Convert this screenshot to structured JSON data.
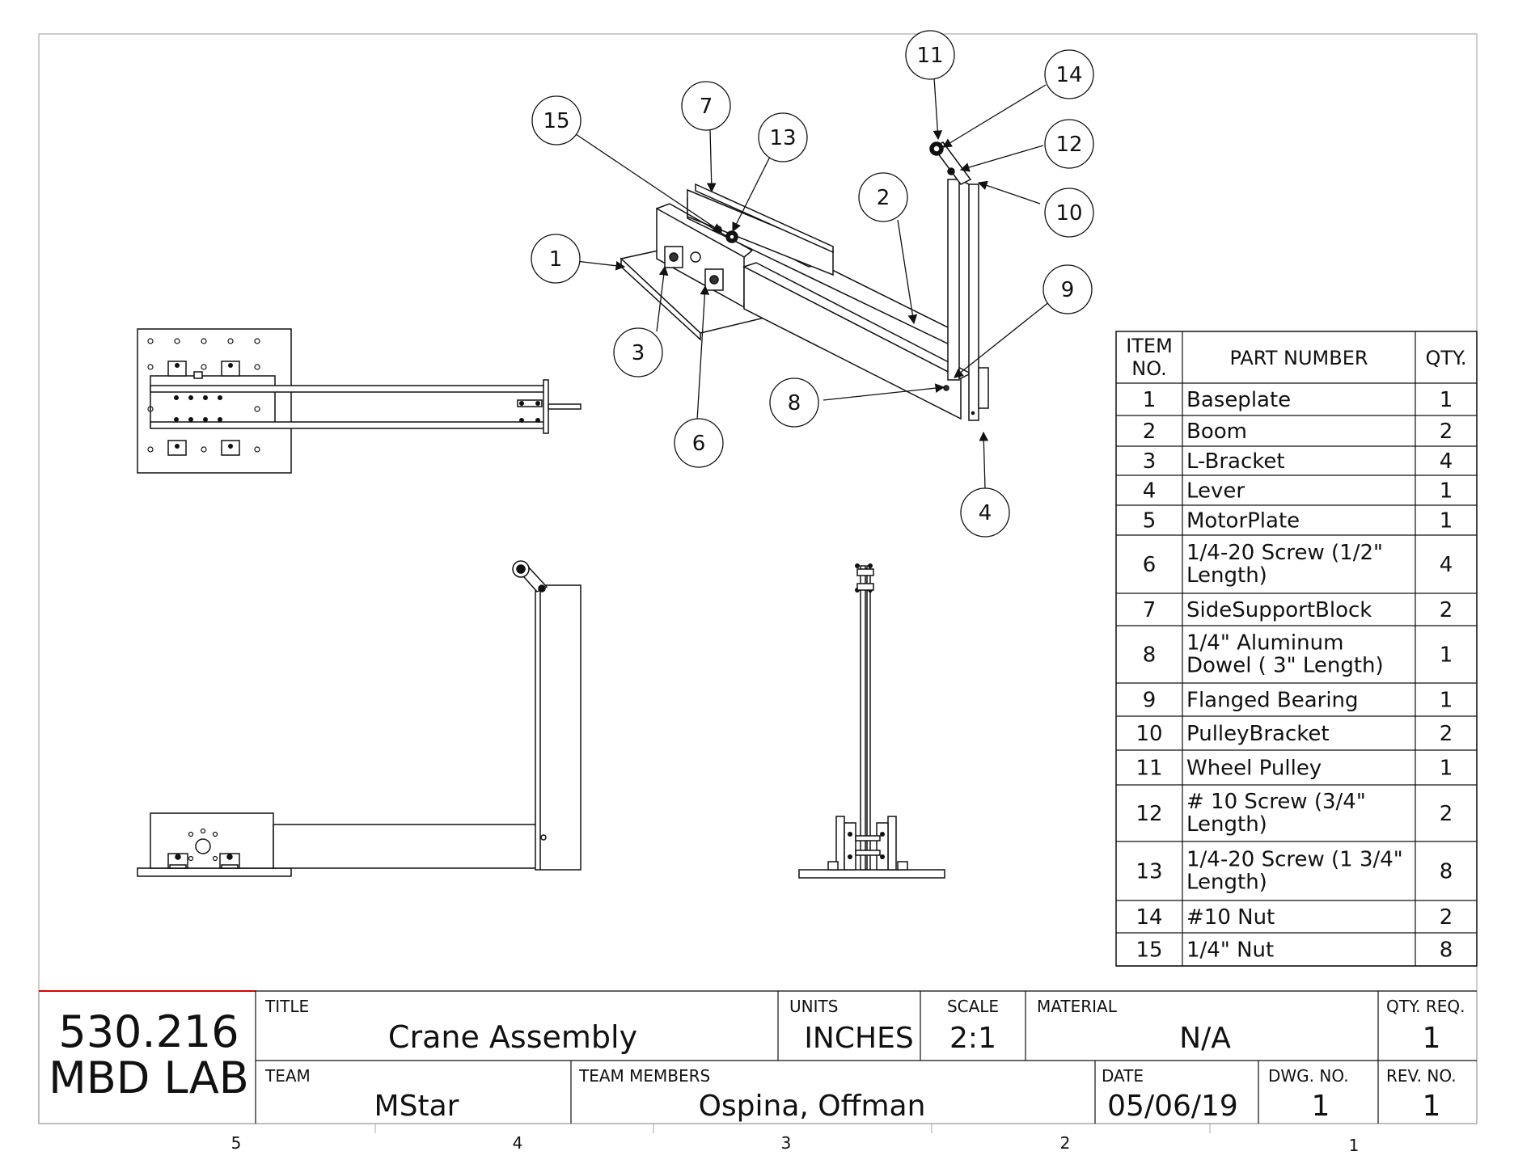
{
  "bom": {
    "headers": {
      "item_no": [
        "ITEM",
        "NO."
      ],
      "part_number": "PART NUMBER",
      "qty": "QTY."
    },
    "rows": [
      {
        "item": "1",
        "part": [
          "Baseplate"
        ],
        "qty": "1"
      },
      {
        "item": "2",
        "part": [
          "Boom"
        ],
        "qty": "2"
      },
      {
        "item": "3",
        "part": [
          "L-Bracket"
        ],
        "qty": "4"
      },
      {
        "item": "4",
        "part": [
          "Lever"
        ],
        "qty": "1"
      },
      {
        "item": "5",
        "part": [
          "MotorPlate"
        ],
        "qty": "1"
      },
      {
        "item": "6",
        "part": [
          "1/4-20 Screw (1/2\"",
          "Length)"
        ],
        "qty": "4"
      },
      {
        "item": "7",
        "part": [
          "SideSupportBlock"
        ],
        "qty": "2"
      },
      {
        "item": "8",
        "part": [
          "1/4\" Aluminum",
          "Dowel ( 3\" Length)"
        ],
        "qty": "1"
      },
      {
        "item": "9",
        "part": [
          "Flanged Bearing"
        ],
        "qty": "1"
      },
      {
        "item": "10",
        "part": [
          "PulleyBracket"
        ],
        "qty": "2"
      },
      {
        "item": "11",
        "part": [
          "Wheel Pulley"
        ],
        "qty": "1"
      },
      {
        "item": "12",
        "part": [
          "# 10 Screw (3/4\"",
          "Length)"
        ],
        "qty": "2"
      },
      {
        "item": "13",
        "part": [
          "1/4-20 Screw (1 3/4\"",
          "Length)"
        ],
        "qty": "8"
      },
      {
        "item": "14",
        "part": [
          "#10 Nut"
        ],
        "qty": "2"
      },
      {
        "item": "15",
        "part": [
          "1/4\" Nut"
        ],
        "qty": "8"
      }
    ]
  },
  "balloons": [
    "1",
    "2",
    "3",
    "4",
    "6",
    "7",
    "8",
    "9",
    "10",
    "11",
    "12",
    "13",
    "14",
    "15"
  ],
  "title_block": {
    "course_line1": "530.216",
    "course_line2": "MBD LAB",
    "title_label": "TITLE",
    "title_value": "Crane Assembly",
    "units_label": "UNITS",
    "units_value": "INCHES",
    "scale_label": "SCALE",
    "scale_value": "2:1",
    "material_label": "MATERIAL",
    "material_value": "N/A",
    "qty_req_label": "QTY. REQ.",
    "qty_req_value": "1",
    "team_label": "TEAM",
    "team_value": "MStar",
    "members_label": "TEAM MEMBERS",
    "members_value": "Ospina, Offman",
    "date_label": "DATE",
    "date_value": "05/06/19",
    "dwg_label": "DWG. NO.",
    "dwg_value": "1",
    "rev_label": "REV. NO.",
    "rev_value": "1"
  },
  "zone_numbers": [
    "5",
    "4",
    "3",
    "2",
    "1"
  ]
}
